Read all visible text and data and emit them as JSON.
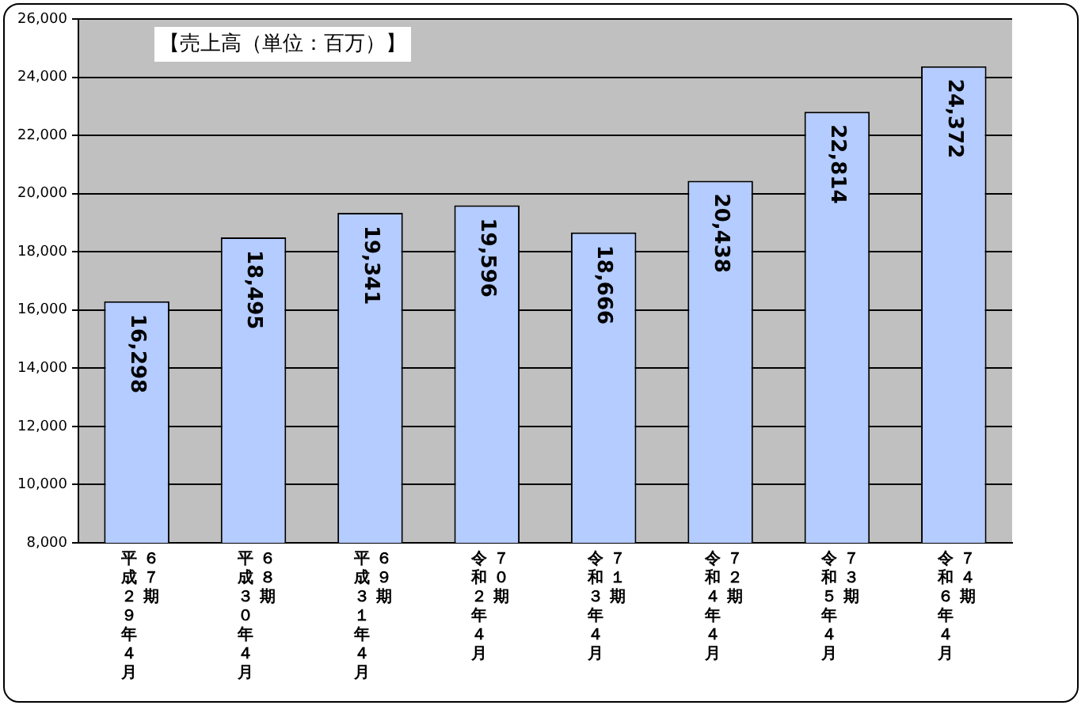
{
  "chart_data": {
    "type": "bar",
    "title": "【売上高（単位：百万）】",
    "categories": [
      "平成２９年４月６７期",
      "平成３０年４月６８期",
      "平成３１年４月６９期",
      "令和２年４月７０期",
      "令和３年４月７１期",
      "令和４年４月７２期",
      "令和５年４月７３期",
      "令和６年４月７４期"
    ],
    "values": [
      16298,
      18495,
      19341,
      19596,
      18666,
      20438,
      22814,
      24372
    ],
    "value_labels": [
      "16,298",
      "18,495",
      "19,341",
      "19,596",
      "18,666",
      "20,438",
      "22,814",
      "24,372"
    ],
    "color": "#b4ccff",
    "ylim": [
      8000,
      26000
    ],
    "yticks": [
      {
        "value": 8000,
        "label": "8,000"
      },
      {
        "value": 10000,
        "label": "10,000"
      },
      {
        "value": 12000,
        "label": "12,000"
      },
      {
        "value": 14000,
        "label": "14,000"
      },
      {
        "value": 16000,
        "label": "16,000"
      },
      {
        "value": 18000,
        "label": "18,000"
      },
      {
        "value": 20000,
        "label": "20,000"
      },
      {
        "value": 22000,
        "label": "22,000"
      },
      {
        "value": 24000,
        "label": "24,000"
      },
      {
        "value": 26000,
        "label": "26,000"
      }
    ],
    "grid": "y",
    "legend": false
  }
}
